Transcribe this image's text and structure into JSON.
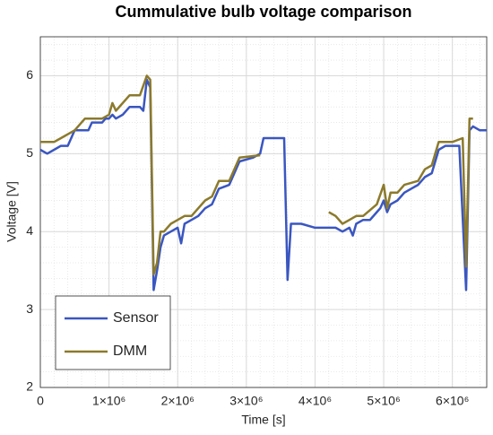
{
  "chart_data": {
    "type": "line",
    "title": "Cummulative bulb voltage comparison",
    "xlabel": "Time [s]",
    "ylabel": "Voltage [V]",
    "xlim": [
      0,
      6500000
    ],
    "xticks": [
      0,
      {
        "value": 1000000,
        "label": "1×10⁶"
      },
      {
        "value": 2000000,
        "label": "2×10⁶"
      },
      {
        "value": 3000000,
        "label": "3×10⁶"
      },
      {
        "value": 4000000,
        "label": "4×10⁶"
      },
      {
        "value": 5000000,
        "label": "5×10⁶"
      },
      {
        "value": 6000000,
        "label": "6×10⁶"
      }
    ],
    "ylim": [
      2,
      6.5
    ],
    "yticks": [
      2,
      3,
      4,
      5,
      6
    ],
    "grid": true,
    "minor_grid": true,
    "legend": "lower left",
    "series": [
      {
        "name": "Sensor",
        "color": "#3a56c0",
        "x": [
          0,
          100000,
          200000,
          300000,
          400000,
          500000,
          650000,
          700000,
          750000,
          900000,
          950000,
          1000000,
          1050000,
          1100000,
          1200000,
          1300000,
          1450000,
          1500000,
          1550000,
          1600000,
          1650000,
          1700000,
          1750000,
          1800000,
          1900000,
          2000000,
          2050000,
          2100000,
          2200000,
          2300000,
          2400000,
          2500000,
          2600000,
          2750000,
          2900000,
          3100000,
          3200000,
          3250000,
          3500000,
          3550000,
          3600000,
          3650000,
          3800000,
          4000000,
          4200000,
          4300000,
          4400000,
          4500000,
          4550000,
          4600000,
          4700000,
          4800000,
          4900000,
          4950000,
          5000000,
          5050000,
          5100000,
          5200000,
          5300000,
          5400000,
          5500000,
          5600000,
          5700000,
          5800000,
          5900000,
          6000000,
          6100000,
          6200000,
          6250000,
          6300000,
          6400000,
          6500000
        ],
        "values": [
          5.05,
          5.0,
          5.05,
          5.1,
          5.1,
          5.3,
          5.3,
          5.3,
          5.4,
          5.4,
          5.45,
          5.45,
          5.5,
          5.45,
          5.5,
          5.6,
          5.6,
          5.55,
          5.95,
          5.85,
          3.25,
          3.5,
          3.8,
          3.95,
          4.0,
          4.05,
          3.85,
          4.1,
          4.15,
          4.2,
          4.3,
          4.35,
          4.55,
          4.6,
          4.9,
          4.95,
          5.0,
          5.2,
          5.2,
          5.2,
          3.38,
          4.1,
          4.1,
          4.05,
          4.05,
          4.05,
          4.0,
          4.05,
          3.95,
          4.1,
          4.15,
          4.15,
          4.25,
          4.3,
          4.4,
          4.25,
          4.35,
          4.4,
          4.5,
          4.55,
          4.6,
          4.7,
          4.75,
          5.05,
          5.1,
          5.1,
          5.1,
          3.25,
          5.3,
          5.35,
          5.3,
          5.3
        ]
      },
      {
        "name": "DMM",
        "color": "#8c7a2c",
        "x": [
          0,
          200000,
          300000,
          500000,
          650000,
          900000,
          1000000,
          1050000,
          1100000,
          1300000,
          1450000,
          1550000,
          1600000,
          1650000,
          1700000,
          1750000,
          1800000,
          1900000,
          2000000,
          2100000,
          2200000,
          2300000,
          2400000,
          2500000,
          2600000,
          2750000,
          2900000,
          3200000,
          3300000,
          4200000,
          4300000,
          4400000,
          4500000,
          4600000,
          4700000,
          4900000,
          5000000,
          5050000,
          5100000,
          5200000,
          5300000,
          5500000,
          5600000,
          5700000,
          5800000,
          6000000,
          6150000,
          6200000,
          6250000,
          6300000
        ],
        "values": [
          5.15,
          5.15,
          5.2,
          5.3,
          5.45,
          5.45,
          5.5,
          5.65,
          5.55,
          5.75,
          5.75,
          6.0,
          5.95,
          3.45,
          3.6,
          4.0,
          4.0,
          4.1,
          4.15,
          4.2,
          4.2,
          4.3,
          4.4,
          4.45,
          4.65,
          4.65,
          4.95,
          4.98,
          null,
          4.25,
          4.2,
          4.1,
          4.15,
          4.2,
          4.2,
          4.35,
          4.6,
          4.3,
          4.5,
          4.5,
          4.6,
          4.65,
          4.8,
          4.85,
          5.15,
          5.15,
          5.2,
          3.55,
          5.45,
          5.45
        ]
      }
    ]
  }
}
